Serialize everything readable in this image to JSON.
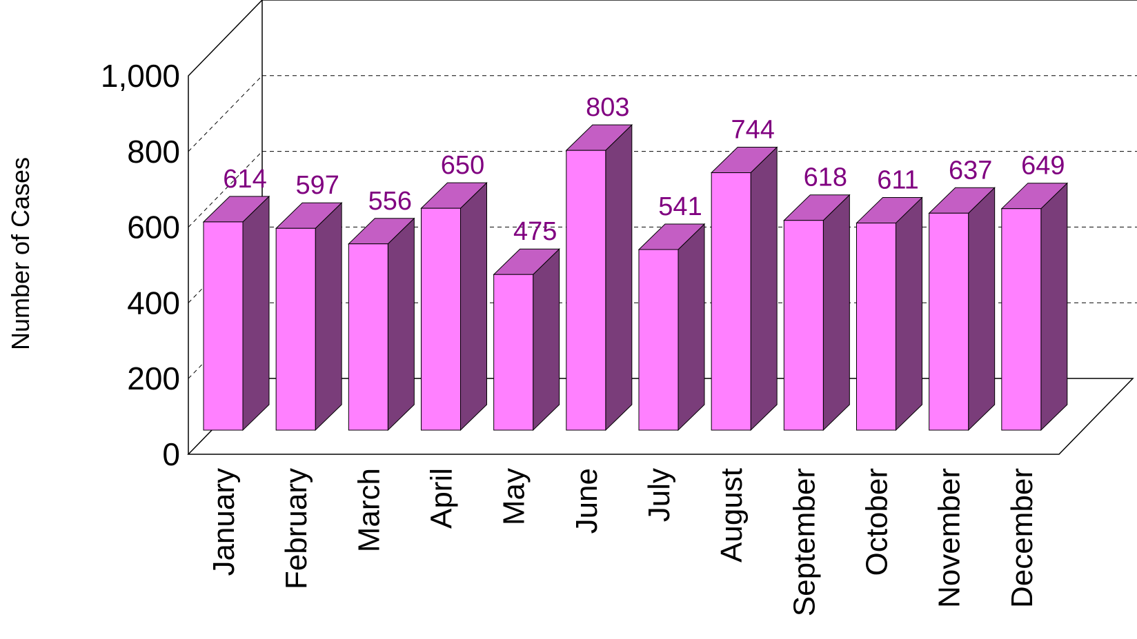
{
  "chart_data": {
    "type": "bar",
    "style": "3d-column",
    "title": "",
    "xlabel": "",
    "ylabel": "Number of Cases",
    "ylim": [
      0,
      1000
    ],
    "yticks": [
      "0",
      "200",
      "400",
      "600",
      "800",
      "1,000"
    ],
    "categories": [
      "January",
      "February",
      "March",
      "April",
      "May",
      "June",
      "July",
      "August",
      "September",
      "October",
      "November",
      "December"
    ],
    "values": [
      614,
      597,
      556,
      650,
      475,
      803,
      541,
      744,
      618,
      611,
      637,
      649
    ],
    "data_labels": [
      "614",
      "597",
      "556",
      "650",
      "475",
      "803",
      "541",
      "744",
      "618",
      "611",
      "637",
      "649"
    ],
    "grid": true,
    "grid_style": "dashed",
    "legend": "none",
    "colors": {
      "bar_front": "#ff80ff",
      "bar_top": "#c45ec4",
      "bar_side": "#7a3d7a",
      "data_label": "#800080"
    }
  }
}
